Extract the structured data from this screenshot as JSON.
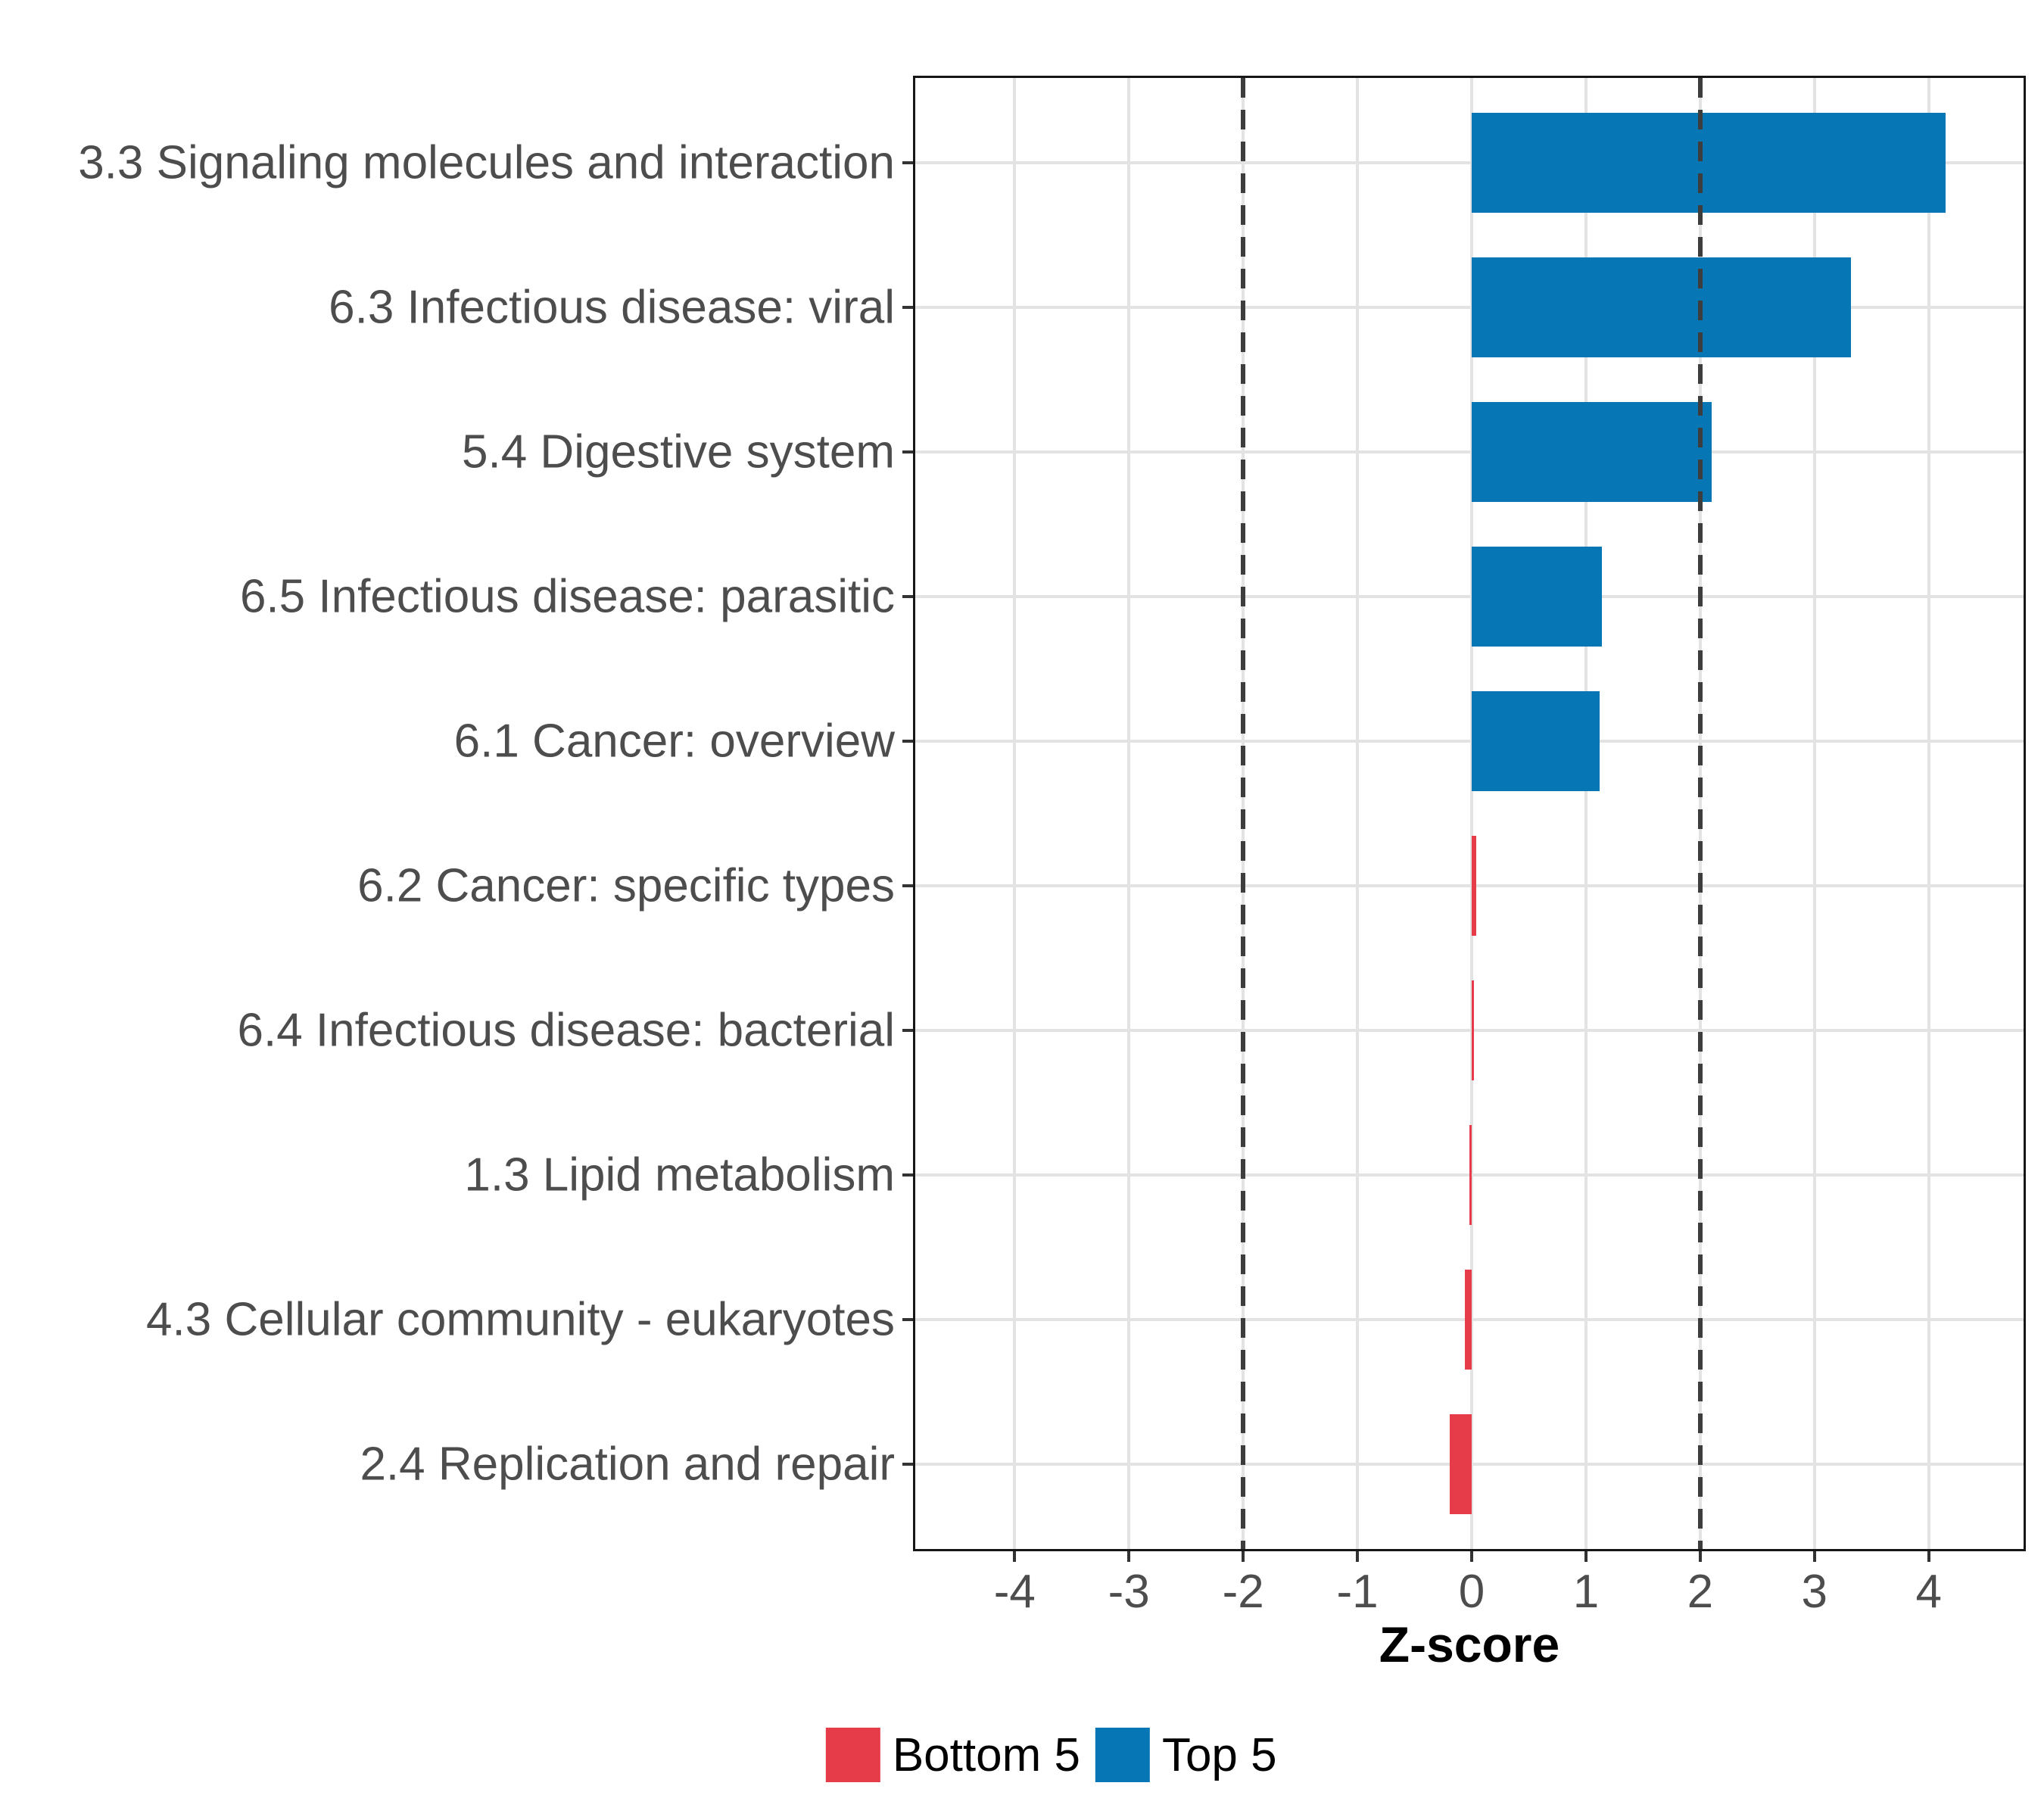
{
  "chart_data": {
    "type": "bar",
    "orientation": "horizontal",
    "title": "",
    "xlabel": "Z-score",
    "ylabel": "",
    "categories": [
      "3.3 Signaling molecules and interaction",
      "6.3 Infectious disease: viral",
      "5.4 Digestive system",
      "6.5 Infectious disease: parasitic",
      "6.1 Cancer: overview",
      "6.2 Cancer: specific types",
      "6.4 Infectious disease: bacterial",
      "1.3 Lipid metabolism",
      "4.3 Cellular community - eukaryotes",
      "2.4 Replication and repair"
    ],
    "values": [
      4.15,
      3.32,
      2.1,
      1.14,
      1.12,
      0.04,
      0.02,
      -0.02,
      -0.06,
      -0.19
    ],
    "groups": [
      "Top 5",
      "Top 5",
      "Top 5",
      "Top 5",
      "Top 5",
      "Bottom 5",
      "Bottom 5",
      "Bottom 5",
      "Bottom 5",
      "Bottom 5"
    ],
    "group_colors": {
      "Top 5": "#0677b4",
      "Bottom 5": "#e63b48"
    },
    "x_ticks": [
      -4,
      -3,
      -2,
      -1,
      0,
      1,
      2,
      3,
      4
    ],
    "xlim": [
      -4.89,
      4.85
    ],
    "reference_lines": [
      -2,
      2
    ],
    "grid": true,
    "legend": {
      "position": "bottom",
      "items": [
        {
          "label": "Bottom 5",
          "color": "#e63b48"
        },
        {
          "label": "Top 5",
          "color": "#0677b4"
        }
      ]
    },
    "colors": {
      "gridline": "#e3e3e3",
      "refline": "#3d3d3d",
      "axis_text": "#4d4d4d",
      "panel_border": "#161616",
      "background": "#ffffff"
    }
  }
}
